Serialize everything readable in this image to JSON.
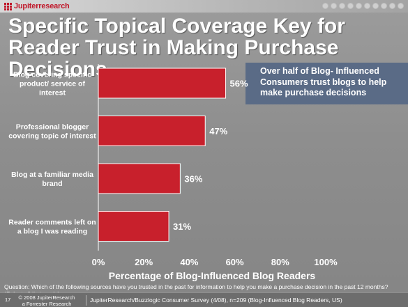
{
  "header": {
    "logo_text": "Jupiterresearch"
  },
  "title": "Specific Topical Coverage Key for Reader Trust in Making Purchase Decisions",
  "callout": "Over half of Blog- Influenced Consumers trust blogs to help make purchase decisions",
  "chart_data": {
    "type": "bar",
    "orientation": "horizontal",
    "categories": [
      "Blog covering specific product/ service of interest",
      "Professional blogger covering topic of interest",
      "Blog at a familiar media brand",
      "Reader comments left on a blog I was reading"
    ],
    "category_lines": [
      [
        "Blog covering specific",
        "product/ service of",
        "interest"
      ],
      [
        "Professional blogger",
        "covering topic of interest"
      ],
      [
        "Blog at a familiar media",
        "brand"
      ],
      [
        "Reader comments left on",
        "a blog I was reading"
      ]
    ],
    "values": [
      56,
      47,
      36,
      31
    ],
    "value_labels": [
      "56%",
      "47%",
      "36%",
      "31%"
    ],
    "xlabel": "Percentage of Blog-Influenced Blog Readers",
    "xlim": [
      0,
      100
    ],
    "xticks": [
      "0%",
      "20%",
      "40%",
      "60%",
      "80%",
      "100%"
    ],
    "bar_color": "#c8202c",
    "grid": false
  },
  "question": "Question: Which of the following sources have you trusted in the past for information to help you make a purchase decision in the past 12 months? (Select all that apply)",
  "footer": {
    "slide_number": "17",
    "copyright_line1": "© 2008 JupiterResearch",
    "copyright_line2": "a Forrester Research company",
    "source": "JupiterResearch/Buzzlogic Consumer Survey (4/08), n=209 (Blog-Influenced Blog Readers, US)"
  }
}
